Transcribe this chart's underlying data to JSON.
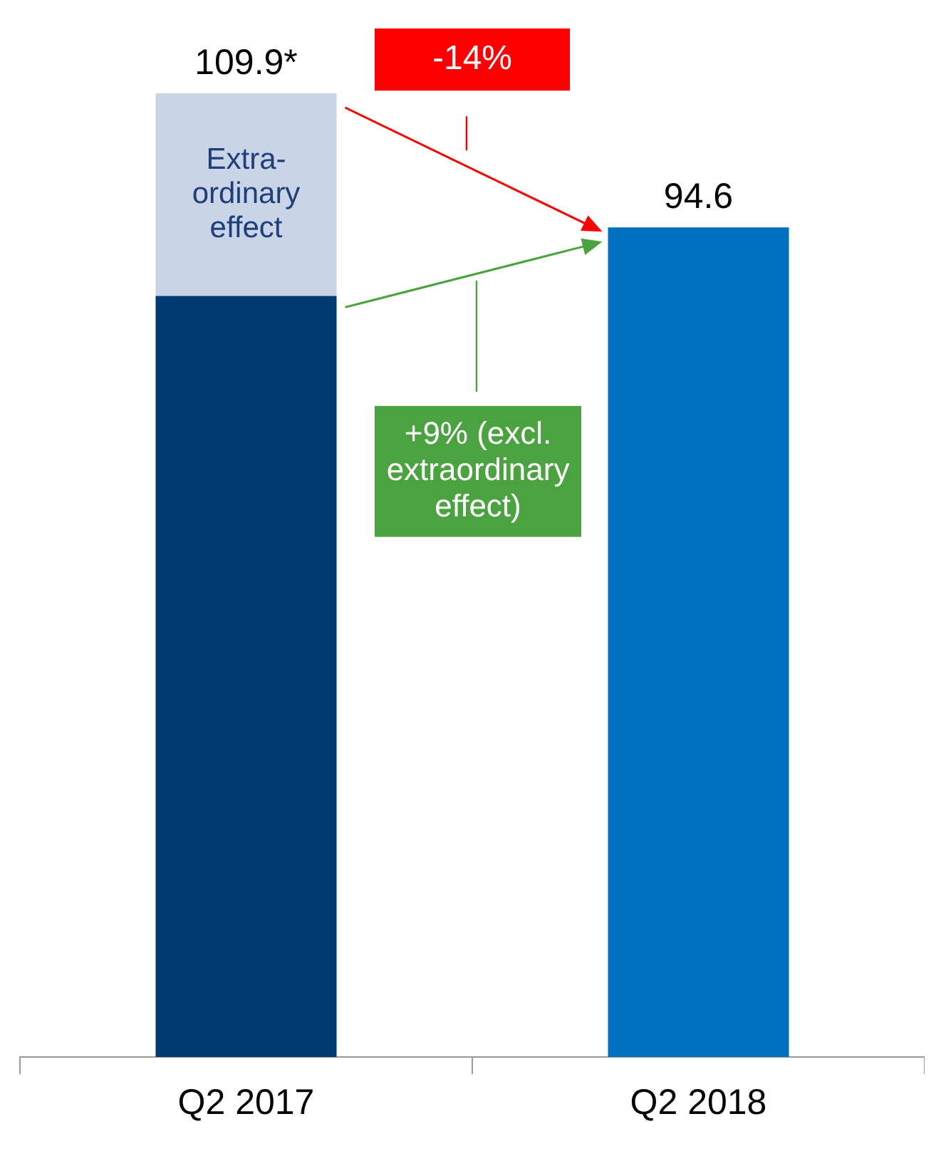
{
  "chart_data": {
    "type": "bar",
    "categories": [
      "Q2 2017",
      "Q2 2018"
    ],
    "stacked": true,
    "series": [
      {
        "colors": [
          "#003a70",
          "#0070c0"
        ],
        "values": [
          86.8,
          94.6
        ],
        "value_labels": [
          null,
          "94.6"
        ]
      },
      {
        "name": "Extra-ordinary effect",
        "color": "#c9d5e6",
        "values": [
          23.1,
          null
        ]
      }
    ],
    "totals": [
      "109.9*",
      null
    ],
    "annotations": [
      "-14%",
      "+9% (excl. extraordinary effect)"
    ],
    "legend": false
  }
}
